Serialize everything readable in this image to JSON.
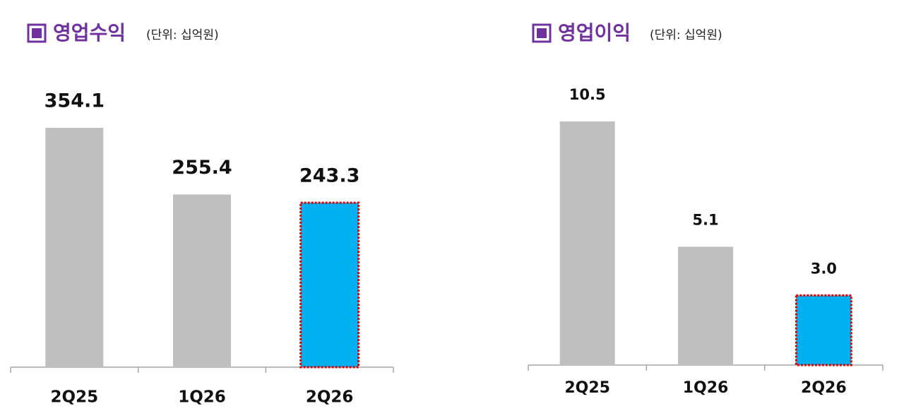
{
  "chart_data": [
    {
      "type": "bar",
      "title": "영업수익",
      "subtitle": "(단위: 십억원)",
      "categories": [
        "2Q25",
        "1Q26",
        "2Q26"
      ],
      "values": [
        354.1,
        255.4,
        243.3
      ],
      "value_labels": [
        "354.1",
        "255.4",
        "243.3"
      ],
      "colors": [
        "#bfbfbf",
        "#bfbfbf",
        "#00b0f0"
      ],
      "highlight": [
        false,
        false,
        true
      ],
      "highlight_color": "#e00000"
    },
    {
      "type": "bar",
      "title": "영업이익",
      "subtitle": "(단위: 십억원)",
      "categories": [
        "2Q25",
        "1Q26",
        "2Q26"
      ],
      "values": [
        10.5,
        5.1,
        3.0
      ],
      "value_labels": [
        "10.5",
        "5.1",
        "3.0"
      ],
      "colors": [
        "#bfbfbf",
        "#bfbfbf",
        "#00b0f0"
      ],
      "highlight": [
        false,
        false,
        true
      ],
      "highlight_color": "#e00000"
    }
  ]
}
